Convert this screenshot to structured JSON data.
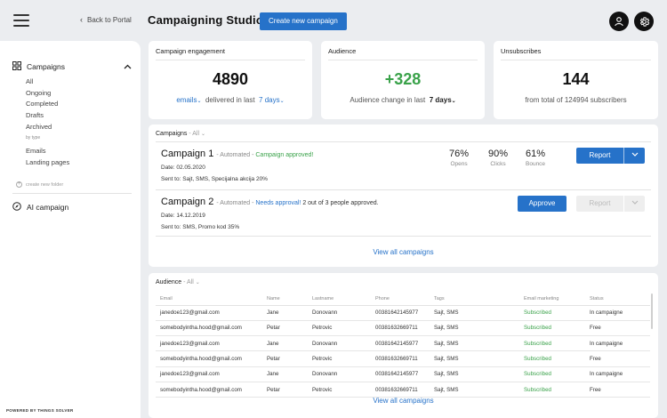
{
  "header": {
    "back_label": "Back to Portal",
    "title": "Campaigning Studio",
    "create_label": "Create new campaign"
  },
  "sidebar": {
    "section_label": "Campaigns",
    "items": [
      "All",
      "Ongoing",
      "Completed",
      "Drafts",
      "Archived"
    ],
    "by_type_label": "by type",
    "type_items": [
      "Emails",
      "Landing pages"
    ],
    "create_folder_label": "create new folder",
    "ai_label": "AI campaign",
    "powered_by": "POWERED BY THINGS SOLVER"
  },
  "stats": {
    "engagement": {
      "label": "Campaign engagement",
      "value": "4890",
      "channel": "emails",
      "middle": "delivered in last",
      "period": "7 days"
    },
    "audience": {
      "label": "Audience",
      "value": "+328",
      "text": "Audience change in last",
      "period": "7 days"
    },
    "unsubscribes": {
      "label": "Unsubscribes",
      "value": "144",
      "text": "from total of 124994 subscribers"
    }
  },
  "campaigns": {
    "title": "Campaigns",
    "filter": "All",
    "rows": [
      {
        "name": "Campaign 1",
        "mode": "Automated",
        "status": "Campaign approved!",
        "extra": "",
        "date_label": "Date:",
        "date": "02.05.2020",
        "sent_label": "Sent to:",
        "sent": "Sajt, SMS, Specijalna akcija 20%",
        "opens": "76%",
        "opens_label": "Opens",
        "clicks": "90%",
        "clicks_label": "Clicks",
        "bounce": "61%",
        "bounce_label": "Bounce",
        "report_label": "Report"
      },
      {
        "name": "Campaign 2",
        "mode": "Automated",
        "status": "Needs approval!",
        "extra": "2 out of 3 people approved.",
        "date_label": "Date:",
        "date": "14.12.2019",
        "sent_label": "Sent to:",
        "sent": "SMS, Promo kod 35%",
        "approve_label": "Approve",
        "report_label": "Report"
      }
    ],
    "view_all": "View all campaigns"
  },
  "audience": {
    "title": "Audience",
    "filter": "All",
    "columns": [
      "Email",
      "Name",
      "Lastname",
      "Phone",
      "Tags",
      "Email marketing",
      "Status"
    ],
    "rows": [
      [
        "janedoe123@gmail.com",
        "Jane",
        "Donovann",
        "00381642145977",
        "Sajt, SMS",
        "Subscribed",
        "In campaigne"
      ],
      [
        "somebodyintha.hood@gmail.com",
        "Petar",
        "Petrovic",
        "00381632669711",
        "Sajt, SMS",
        "Subscribed",
        "Free"
      ],
      [
        "janedoe123@gmail.com",
        "Jane",
        "Donovann",
        "00381642145977",
        "Sajt, SMS",
        "Subscribed",
        "In campaigne"
      ],
      [
        "somebodyintha.hood@gmail.com",
        "Petar",
        "Petrovic",
        "00381632669711",
        "Sajt, SMS",
        "Subscribed",
        "Free"
      ],
      [
        "janedoe123@gmail.com",
        "Jane",
        "Donovann",
        "00381642145977",
        "Sajt, SMS",
        "Subscribed",
        "In campaigne"
      ],
      [
        "somebodyintha.hood@gmail.com",
        "Petar",
        "Petrovic",
        "00381632669711",
        "Sajt, SMS",
        "Subscribed",
        "Free"
      ]
    ],
    "view_all": "View all campaigns"
  },
  "colors": {
    "accent": "#2672c9",
    "positive": "#3aa24a",
    "background": "#ebedf0"
  },
  "icons": {
    "menu": "hamburger-icon",
    "back": "chevron-left-icon",
    "user": "user-icon",
    "settings": "gear-icon",
    "campaigns": "grid-icon",
    "ai": "compass-icon"
  }
}
